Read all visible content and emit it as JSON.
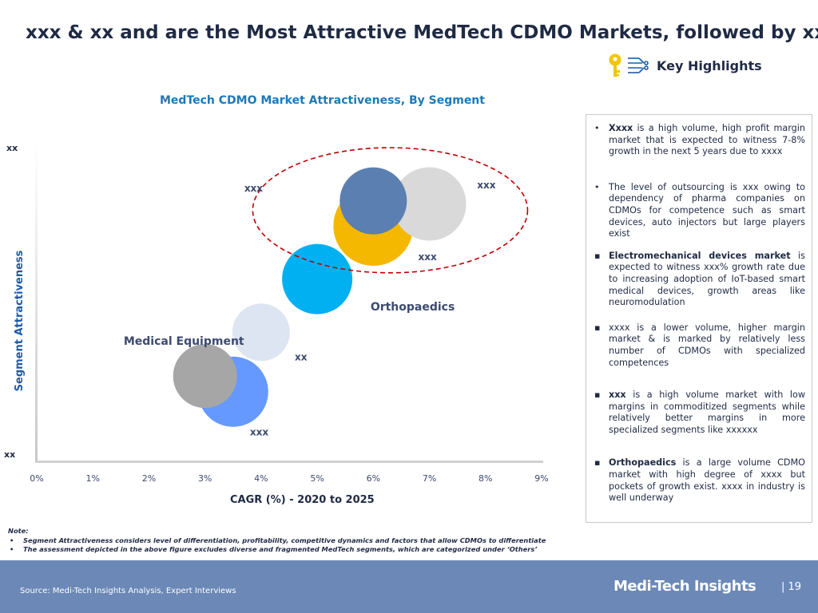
{
  "title": "xxx & xx and are the Most Attractive MedTech CDMO Markets, followed by xx",
  "key_highlights": {
    "label": "Key Highlights",
    "icon": "key-icon"
  },
  "chart_data": {
    "type": "bubble",
    "title": "MedTech CDMO Market Attractiveness, By Segment",
    "xlabel": "CAGR (%) - 2020 to 2025",
    "ylabel": "Segment Attractiveness",
    "xlim": [
      0,
      9
    ],
    "x_ticks": [
      "0%",
      "1%",
      "2%",
      "3%",
      "4%",
      "5%",
      "6%",
      "7%",
      "8%",
      "9%"
    ],
    "y_low_label": "xx",
    "y_high_label": "xx",
    "ylim": [
      0,
      10
    ],
    "grid": false,
    "points": [
      {
        "x": 3.5,
        "y": 2.2,
        "size": 44,
        "color": "#6699ff"
      },
      {
        "x": 3.0,
        "y": 2.7,
        "size": 40,
        "color": "#a6a6a6"
      },
      {
        "x": 4.0,
        "y": 4.1,
        "size": 36,
        "color": "#dde5f2"
      },
      {
        "x": 5.0,
        "y": 5.8,
        "size": 44,
        "color": "#00b0f0"
      },
      {
        "x": 6.0,
        "y": 7.5,
        "size": 50,
        "color": "#f5b800"
      },
      {
        "x": 7.0,
        "y": 8.2,
        "size": 46,
        "color": "#d9d9d9"
      },
      {
        "x": 6.0,
        "y": 8.3,
        "size": 42,
        "color": "#5b7fb0"
      }
    ],
    "labels": [
      {
        "text": "xxx",
        "x": 3.8,
        "y": 0.8,
        "bold": true
      },
      {
        "text": "Medical Equipment",
        "x": 1.55,
        "y": 3.7,
        "bold": true
      },
      {
        "text": "xx",
        "x": 4.6,
        "y": 3.2,
        "bold": true
      },
      {
        "text": "Orthopaedics",
        "x": 5.95,
        "y": 4.8,
        "bold": true
      },
      {
        "text": "xxx",
        "x": 6.8,
        "y": 6.4,
        "bold": true
      },
      {
        "text": "xxx",
        "x": 3.7,
        "y": 8.6,
        "bold": true
      },
      {
        "text": "xxx",
        "x": 7.85,
        "y": 8.7,
        "bold": true
      }
    ],
    "highlight_ellipse": {
      "cx": 6.3,
      "cy": 8.0,
      "rx": 2.45,
      "ry": 2.0,
      "color": "#c00000"
    }
  },
  "highlights": [
    {
      "bold": "Xxxx",
      "text": " is a high volume, high profit margin market that is expected to witness 7-8% growth in the next 5 years due to xxxx",
      "marker": "bullet"
    },
    {
      "bold": "",
      "text": "The level of outsourcing is xxx owing to dependency of pharma companies on CDMOs for competence such as smart devices, auto injectors but large players exist",
      "marker": "bullet"
    },
    {
      "bold": "Electromechanical devices market",
      "text": " is expected to witness  xxx% growth rate due to increasing adoption of IoT-based smart medical devices, growth areas like neuromodulation",
      "marker": "square"
    },
    {
      "bold": "",
      "text": "xxxx is a lower volume, higher margin market & is marked by relatively less number of CDMOs with specialized competences",
      "marker": "square"
    },
    {
      "bold": "xxx",
      "text": " is a high volume market with low margins in commoditized segments while relatively better margins in more specialized segments like xxxxxx",
      "marker": "square"
    },
    {
      "bold": "Orthopaedics",
      "text": " is a large volume CDMO market with high degree of xxxx but pockets of growth exist. xxxx in industry is well underway",
      "marker": "square"
    }
  ],
  "notes": {
    "heading": "Note:",
    "items": [
      "Segment Attractiveness considers level of differentiation, profitability, competitive dynamics and factors that allow CDMOs to differentiate",
      "The assessment depicted in the above figure excludes diverse and fragmented MedTech segments, which are categorized under ‘Others’"
    ]
  },
  "footer": {
    "source": "Source: Medi-Tech Insights Analysis, Expert Interviews",
    "brand": "Medi-Tech Insights",
    "page": "| 19"
  }
}
